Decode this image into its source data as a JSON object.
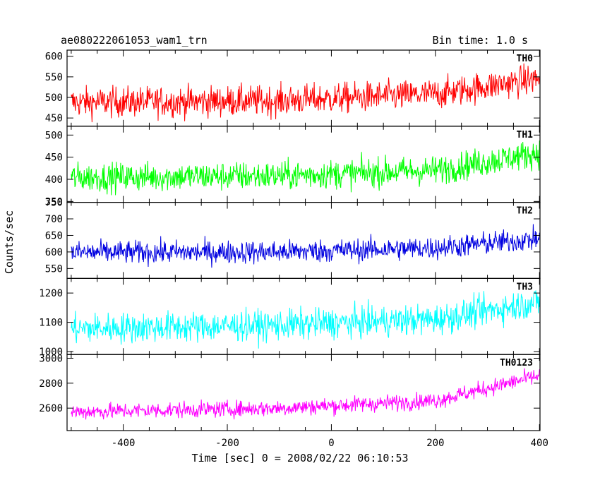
{
  "header": {
    "title_left": "ae080222061053_wam1_trn",
    "title_right": "Bin time: 1.0 s"
  },
  "chart_data": {
    "type": "line",
    "xlabel": "Time [sec] 0 = 2008/02/22 06:10:53",
    "ylabel": "Counts/sec",
    "xlim": [
      -508,
      401
    ],
    "xticks": [
      -400,
      -200,
      0,
      200,
      400
    ],
    "panels": [
      {
        "name": "TH0",
        "color": "#ff0000",
        "ylim": [
          430,
          615
        ],
        "yticks": [
          450,
          500,
          550,
          600
        ],
        "trend": [
          [
            -500,
            488
          ],
          [
            -100,
            492
          ],
          [
            200,
            508
          ],
          [
            400,
            546
          ]
        ],
        "noise": 34
      },
      {
        "name": "TH1",
        "color": "#00ff00",
        "ylim": [
          348,
          520
        ],
        "yticks": [
          350,
          400,
          450,
          500
        ],
        "trend": [
          [
            -500,
            404
          ],
          [
            -100,
            408
          ],
          [
            200,
            420
          ],
          [
            400,
            460
          ]
        ],
        "noise": 30
      },
      {
        "name": "TH2",
        "color": "#0000e0",
        "ylim": [
          520,
          750
        ],
        "yticks": [
          550,
          600,
          650,
          700,
          750
        ],
        "trend": [
          [
            -500,
            598
          ],
          [
            -100,
            600
          ],
          [
            200,
            612
          ],
          [
            400,
            640
          ]
        ],
        "noise": 32
      },
      {
        "name": "TH3",
        "color": "#00ffff",
        "ylim": [
          990,
          1250
        ],
        "yticks": [
          1000,
          1100,
          1200
        ],
        "trend": [
          [
            -500,
            1078
          ],
          [
            -100,
            1090
          ],
          [
            200,
            1110
          ],
          [
            400,
            1170
          ]
        ],
        "noise": 48
      },
      {
        "name": "TH0123",
        "color": "#ff00ff",
        "ylim": [
          2420,
          3030
        ],
        "yticks": [
          2600,
          2800,
          3000
        ],
        "trend": [
          [
            -500,
            2570
          ],
          [
            -100,
            2600
          ],
          [
            200,
            2660
          ],
          [
            400,
            2860
          ]
        ],
        "noise": 60
      }
    ]
  }
}
